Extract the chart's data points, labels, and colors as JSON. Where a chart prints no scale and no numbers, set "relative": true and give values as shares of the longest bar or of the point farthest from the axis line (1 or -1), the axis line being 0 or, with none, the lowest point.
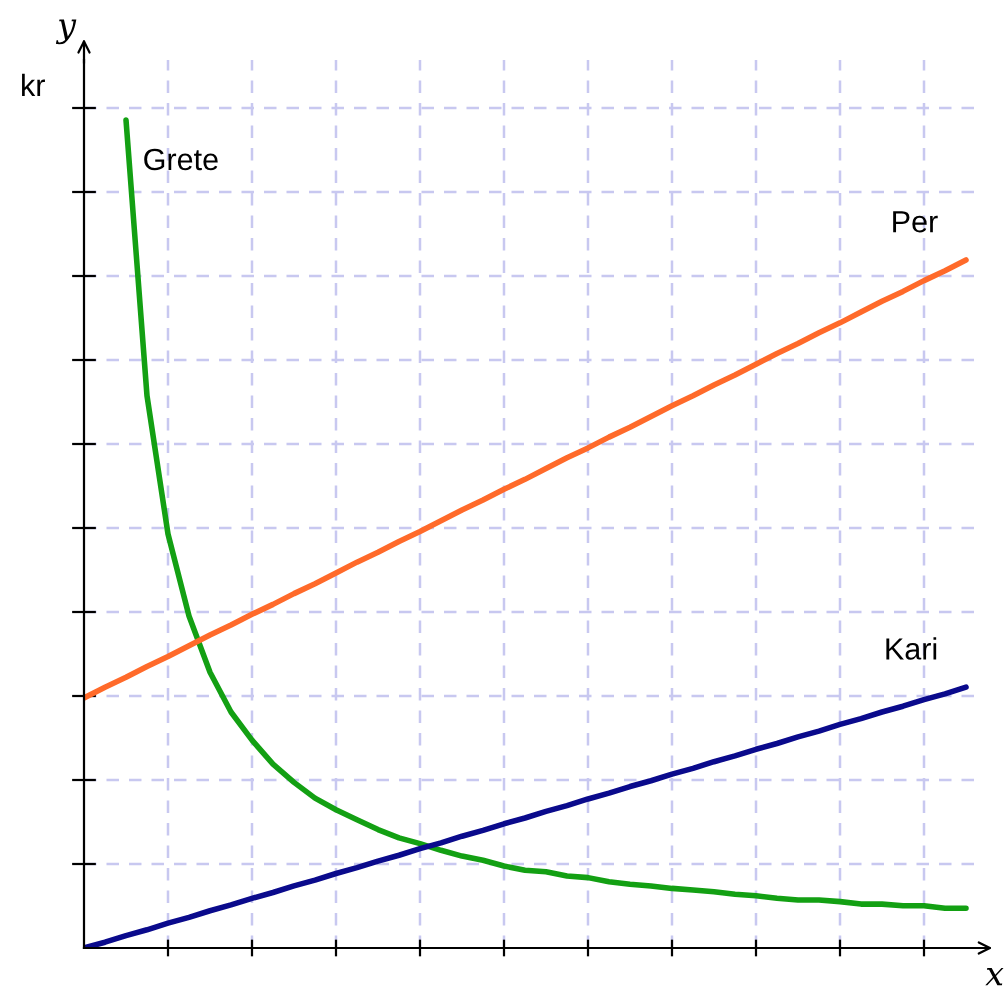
{
  "chart_data": {
    "type": "line",
    "relative": true,
    "xlabel": "x",
    "ylabel": "y",
    "annotations": [
      "kr"
    ],
    "grid": true,
    "categories": [
      null,
      null,
      null,
      null,
      null,
      null,
      null,
      null,
      null,
      null,
      null,
      null,
      null,
      null,
      null,
      null,
      null,
      null,
      null,
      null,
      null,
      null,
      null,
      null,
      null,
      null,
      null,
      null,
      null,
      null,
      null,
      null,
      null,
      null,
      null,
      null,
      null,
      null,
      null,
      null,
      null,
      null,
      null
    ],
    "series": [
      {
        "name": "Grete",
        "color": "#13a013",
        "values": [
          null,
          null,
          1.0,
          0.667,
          0.5,
          0.401,
          0.333,
          0.285,
          0.251,
          0.222,
          0.2,
          0.181,
          0.167,
          0.155,
          0.143,
          0.133,
          0.126,
          0.118,
          0.111,
          0.106,
          0.099,
          0.094,
          0.092,
          0.087,
          0.085,
          0.08,
          0.077,
          0.075,
          0.072,
          0.07,
          0.068,
          0.065,
          0.063,
          0.06,
          0.058,
          0.058,
          0.056,
          0.053,
          0.053,
          0.051,
          0.051,
          0.048,
          0.048
        ]
      },
      {
        "name": "Per",
        "color": "#ff6a2a",
        "values": [
          0.302,
          0.315,
          0.327,
          0.34,
          0.352,
          0.365,
          0.378,
          0.39,
          0.403,
          0.415,
          0.428,
          0.44,
          0.453,
          0.466,
          0.478,
          0.491,
          0.503,
          0.516,
          0.529,
          0.541,
          0.554,
          0.566,
          0.579,
          0.592,
          0.604,
          0.617,
          0.629,
          0.642,
          0.655,
          0.667,
          0.68,
          0.692,
          0.705,
          0.718,
          0.73,
          0.743,
          0.755,
          0.768,
          0.781,
          0.793,
          0.806,
          0.818,
          0.831
        ]
      },
      {
        "name": "Kari",
        "color": "#0a0a8c",
        "values": [
          0,
          0.007,
          0.015,
          0.022,
          0.03,
          0.037,
          0.045,
          0.052,
          0.06,
          0.067,
          0.075,
          0.082,
          0.09,
          0.097,
          0.105,
          0.112,
          0.12,
          0.127,
          0.135,
          0.142,
          0.15,
          0.157,
          0.165,
          0.172,
          0.18,
          0.187,
          0.195,
          0.202,
          0.21,
          0.217,
          0.225,
          0.232,
          0.24,
          0.247,
          0.255,
          0.262,
          0.27,
          0.277,
          0.285,
          0.292,
          0.3,
          0.307,
          0.315
        ]
      }
    ]
  }
}
